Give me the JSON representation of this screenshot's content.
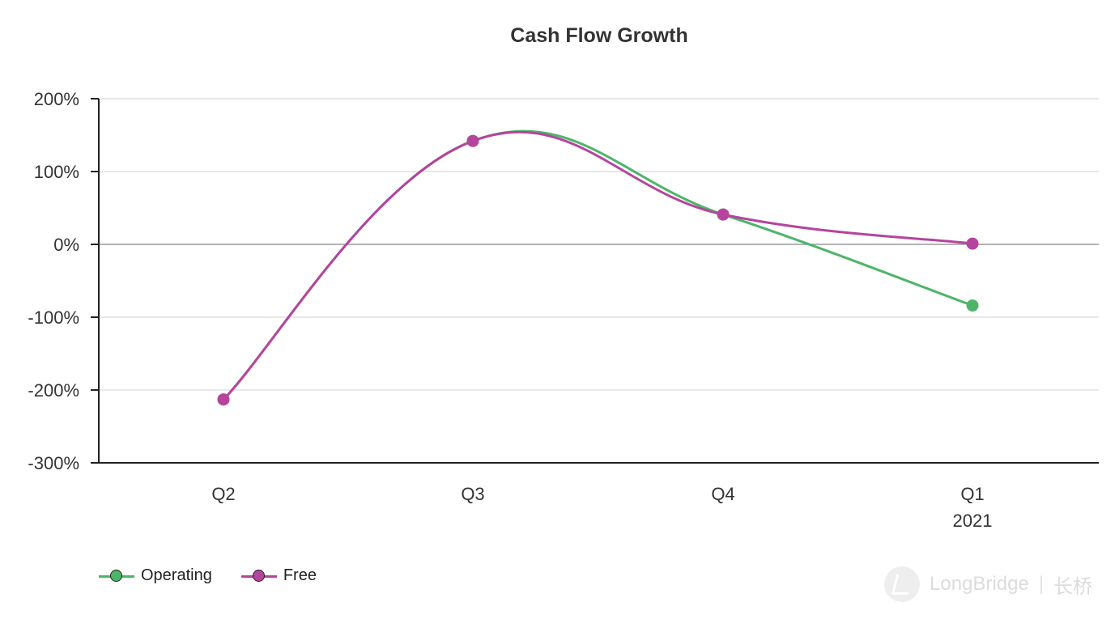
{
  "chart_data": {
    "type": "line",
    "title": "Cash Flow Growth",
    "categories": [
      "Q2",
      "Q3",
      "Q4",
      "Q1"
    ],
    "category_sublabels": [
      "",
      "",
      "",
      "2021"
    ],
    "ylim": [
      -300,
      200
    ],
    "yticks": [
      200,
      100,
      0,
      -100,
      -200,
      -300
    ],
    "ytick_labels": [
      "200%",
      "100%",
      "0%",
      "-100%",
      "-200%",
      "-300%"
    ],
    "grid": true,
    "legend_position": "bottom-left",
    "series": [
      {
        "name": "Operating",
        "color": "#4db56a",
        "values": [
          -213,
          142,
          41,
          -84
        ]
      },
      {
        "name": "Free",
        "color": "#b5449e",
        "values": [
          -213,
          142,
          41,
          1
        ]
      }
    ]
  },
  "watermark": {
    "brand": "LongBridge",
    "separator": "|",
    "chinese": "长桥"
  }
}
